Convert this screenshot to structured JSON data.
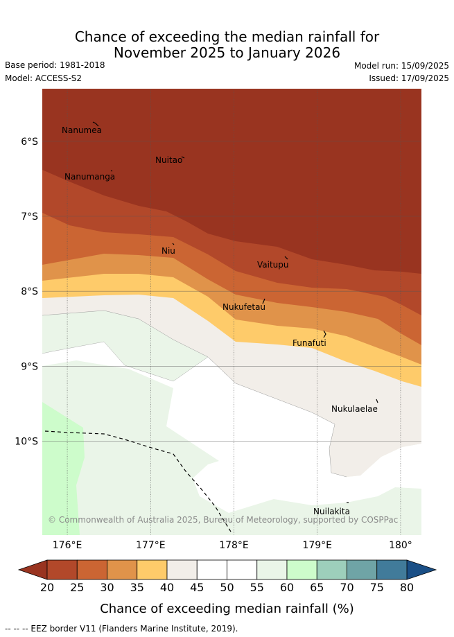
{
  "title": {
    "line1": "Chance of exceeding the median rainfall for",
    "line2": "November 2025 to January 2026"
  },
  "meta": {
    "base_period": "Base period: 1981-2018",
    "model": "Model: ACCESS-S2",
    "model_run": "Model run: 15/09/2025",
    "issued": "Issued: 17/09/2025"
  },
  "map": {
    "lon_range": [
      175.7,
      180.25
    ],
    "lat_range": [
      -11.25,
      -5.3
    ],
    "lon_ticks": [
      {
        "value": 176,
        "label": "176°E"
      },
      {
        "value": 177,
        "label": "177°E"
      },
      {
        "value": 178,
        "label": "178°E"
      },
      {
        "value": 179,
        "label": "179°E"
      },
      {
        "value": 180,
        "label": "180°"
      }
    ],
    "lat_ticks": [
      {
        "value": -6,
        "label": "6°S"
      },
      {
        "value": -7,
        "label": "7°S"
      },
      {
        "value": -8,
        "label": "8°S"
      },
      {
        "value": -9,
        "label": "9°S"
      },
      {
        "value": -10,
        "label": "10°S"
      }
    ],
    "places": [
      {
        "name": "Nanumea"
      },
      {
        "name": "Nuitao"
      },
      {
        "name": "Nanumanga"
      },
      {
        "name": "Niu"
      },
      {
        "name": "Vaitupu"
      },
      {
        "name": "Nukufetau"
      },
      {
        "name": "Funafuti"
      },
      {
        "name": "Nukulaelae"
      },
      {
        "name": "Nuilakita"
      }
    ],
    "copyright": "© Commonwealth of Australia 2025, Bureau of Meteorology, supported by COSPPac"
  },
  "colorbar": {
    "ticks": [
      "20",
      "25",
      "30",
      "35",
      "40",
      "45",
      "50",
      "55",
      "60",
      "65",
      "70",
      "75",
      "80"
    ],
    "colors": [
      "#b2482a",
      "#cb6533",
      "#e0934a",
      "#fecb6a",
      "#f2eee9",
      "#ffffff",
      "#ffffff",
      "#eaf5e8",
      "#cdfccb",
      "#9dcfbb",
      "#6fa4a6",
      "#417b9a"
    ],
    "under_color": "#993420",
    "over_color": "#1a4f86",
    "label": "Chance of exceeding median rainfall (%)"
  },
  "footnote": "-- -- -- EEZ border V11 (Flanders Marine Institute, 2019)."
}
